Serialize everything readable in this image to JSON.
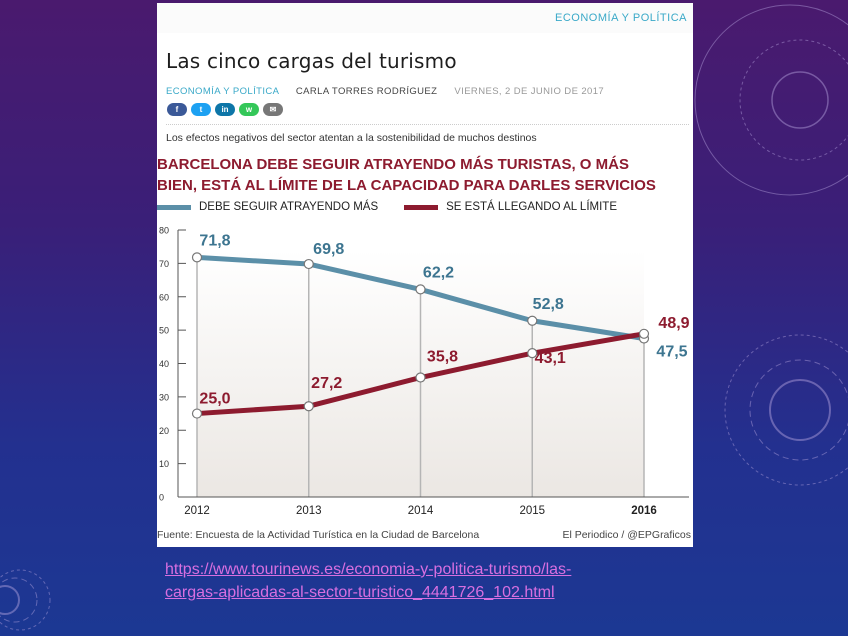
{
  "article": {
    "top_category": "ECONOMÍA Y POLÍTICA",
    "title": "Las cinco cargas del turismo",
    "section": "ECONOMÍA Y POLÍTICA",
    "author": "CARLA TORRES RODRÍGUEZ",
    "date": "VIERNES, 2 DE JUNIO DE 2017",
    "social_buttons": [
      {
        "icon": "facebook-icon",
        "glyph": "f",
        "color": "#3b5998"
      },
      {
        "icon": "twitter-icon",
        "glyph": "t",
        "color": "#1da1f2"
      },
      {
        "icon": "linkedin-icon",
        "glyph": "in",
        "color": "#0e76a8"
      },
      {
        "icon": "whatsapp-icon",
        "glyph": "w",
        "color": "#34c759"
      },
      {
        "icon": "email-icon",
        "glyph": "✉",
        "color": "#777777"
      }
    ],
    "lead": "Los efectos negativos del sector atentan a la sostenibilidad de muchos destinos"
  },
  "chart_data": {
    "type": "line",
    "title": "BARCELONA DEBE SEGUIR ATRAYENDO MÁS TURISTAS, O MÁS BIEN, ESTÁ AL LÍMITE DE LA CAPACIDAD PARA DARLES SERVICIOS",
    "title_lines": [
      "BARCELONA DEBE SEGUIR ATRAYENDO MÁS TURISTAS, O MÁS",
      "BIEN, ESTÁ AL LÍMITE DE LA CAPACIDAD PARA DARLES SERVICIOS"
    ],
    "x": [
      "2012",
      "2013",
      "2014",
      "2015",
      "2016"
    ],
    "series": [
      {
        "name": "DEBE SEGUIR ATRAYENDO MÁS",
        "color": "#5b8fa8",
        "label_color": "#3d7590",
        "values": [
          71.8,
          69.8,
          62.2,
          52.8,
          47.5
        ],
        "labels": [
          "71,8",
          "69,8",
          "62,2",
          "52,8",
          "47,5"
        ]
      },
      {
        "name": "SE ESTÁ LLEGANDO AL LÍMITE",
        "color": "#8d1b2f",
        "label_color": "#8d1b2f",
        "values": [
          25.0,
          27.2,
          35.8,
          43.1,
          48.9
        ],
        "labels": [
          "25,0",
          "27,2",
          "35,8",
          "43,1",
          "48,9"
        ]
      }
    ],
    "ylim": [
      0,
      80
    ],
    "yticks": [
      "0",
      "10",
      "20",
      "30",
      "40",
      "50",
      "60",
      "70",
      "80"
    ],
    "grid": "vertical",
    "legend": "top-left",
    "source": "Fuente: Encuesta de la Actividad Turística en la Ciudad de Barcelona",
    "credit": "El Periodico / @EPGraficos"
  },
  "link": {
    "line1": "https://www.tourinews.es/economia-y-politica-turismo/las-",
    "line2": "cargas-aplicadas-al-sector-turistico_4441726_102.html"
  }
}
